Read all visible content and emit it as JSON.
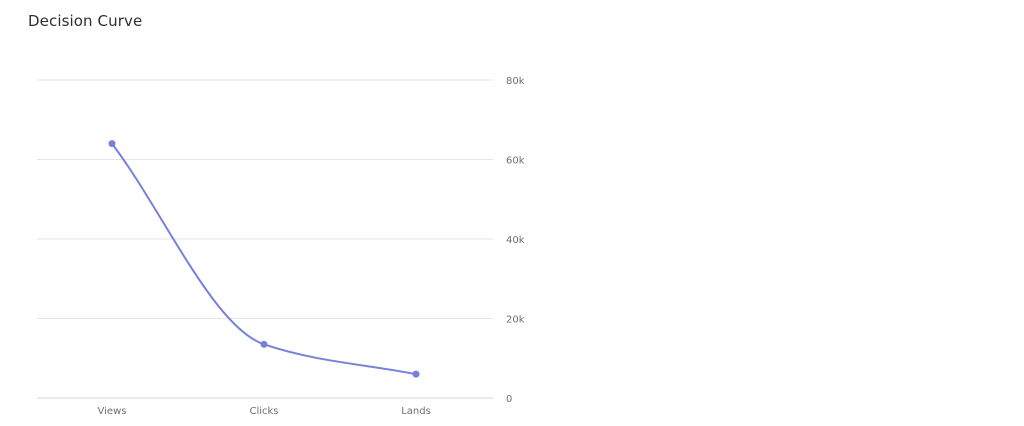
{
  "chart_data": {
    "type": "line",
    "title": "Decision Curve",
    "categories": [
      "Views",
      "Clicks",
      "Lands"
    ],
    "series": [
      {
        "values": [
          64000,
          13500,
          6000
        ],
        "color": "#7682d9"
      }
    ],
    "ylim": [
      0,
      80000
    ],
    "yticks": [
      0,
      20000,
      40000,
      60000,
      80000
    ],
    "ytick_labels": [
      "0",
      "20k",
      "40k",
      "60k",
      "80k"
    ],
    "y_axis_position": "right",
    "grid": true,
    "grid_color": "#e6e6e6",
    "curve": "smooth"
  }
}
